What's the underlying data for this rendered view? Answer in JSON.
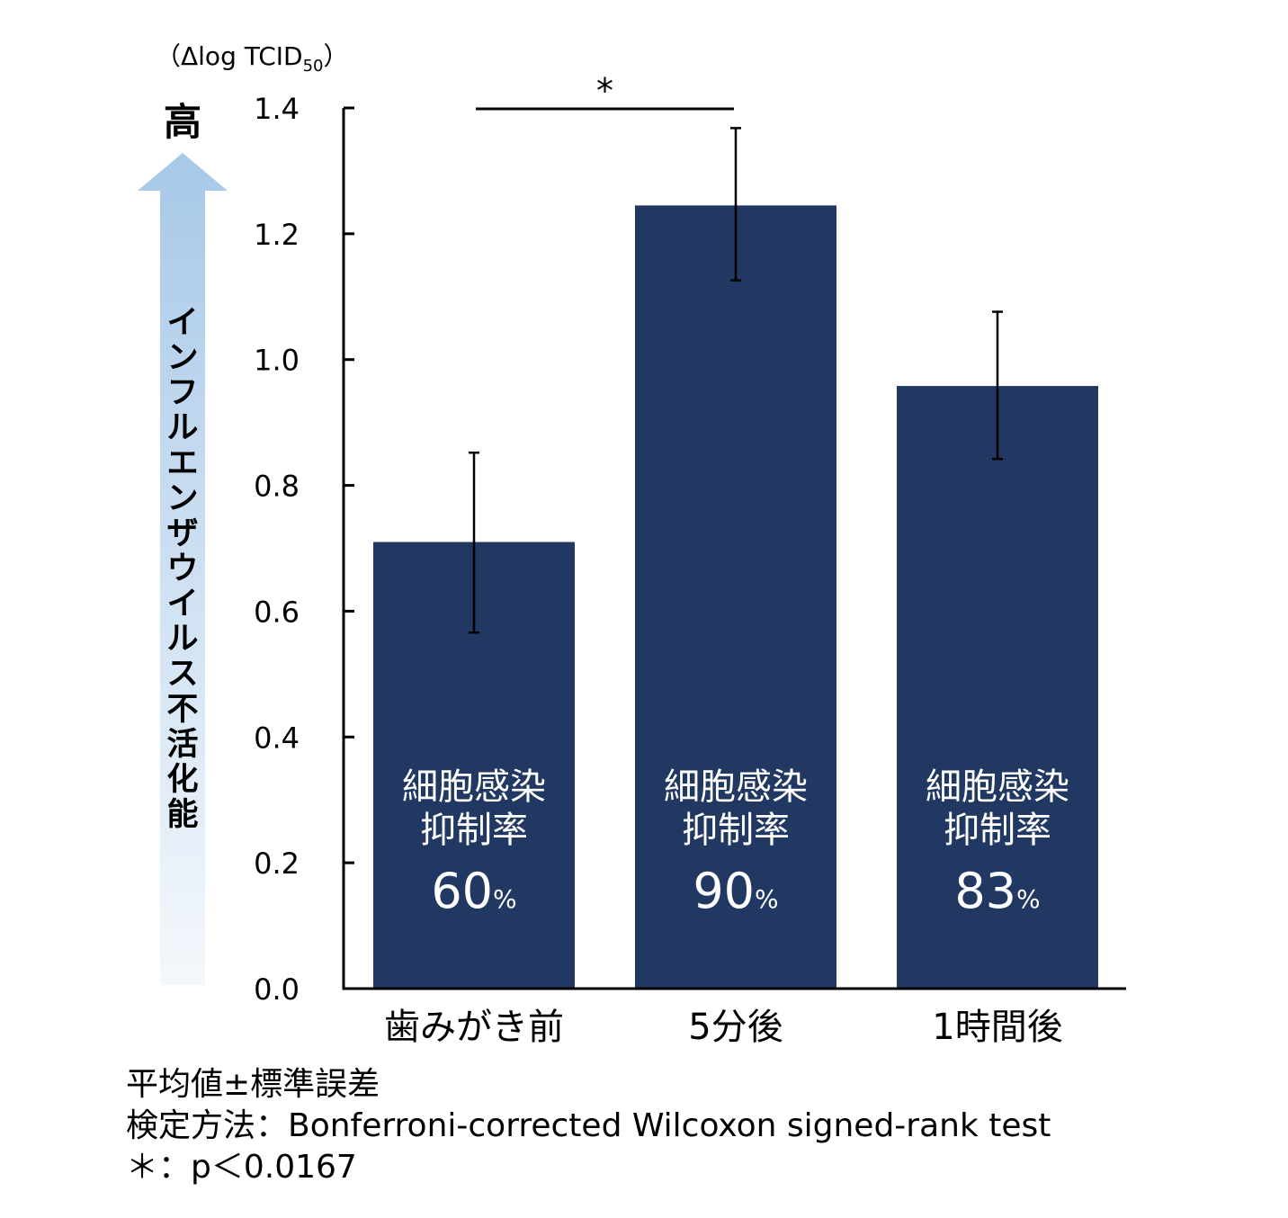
{
  "chart_data": {
    "type": "bar",
    "title": "",
    "y_unit": {
      "prefix": "（Δlog TCID",
      "subscript": "50",
      "suffix": "）"
    },
    "ylabel": "インフルエンザウイルス不活化能",
    "y_high_label": "高",
    "ylim": [
      0,
      1.4
    ],
    "yticks": [
      "0.0",
      "0.2",
      "0.4",
      "0.6",
      "0.8",
      "1.0",
      "1.2",
      "1.4"
    ],
    "grid": false,
    "categories": [
      "歯みがき前",
      "5分後",
      "1時間後"
    ],
    "values": [
      0.71,
      1.245,
      0.958
    ],
    "error_upper": [
      0.852,
      1.368,
      1.076
    ],
    "error_lower": [
      0.566,
      1.126,
      0.842
    ],
    "bar_label_lines": [
      "細胞感染",
      "抑制率"
    ],
    "bar_rates": [
      "60",
      "90",
      "83"
    ],
    "rate_unit": "%",
    "significance": {
      "from": 0,
      "to": 1,
      "mark": "*"
    },
    "colors": {
      "bar": "#213863",
      "arrow_top": "#a7c8e8",
      "arrow_bottom": "#f4f8fc"
    }
  },
  "footnotes": [
    "平均値±標準誤差",
    "検定方法：Bonferroni-corrected Wilcoxon signed-rank test",
    "＊：p＜0.0167"
  ]
}
